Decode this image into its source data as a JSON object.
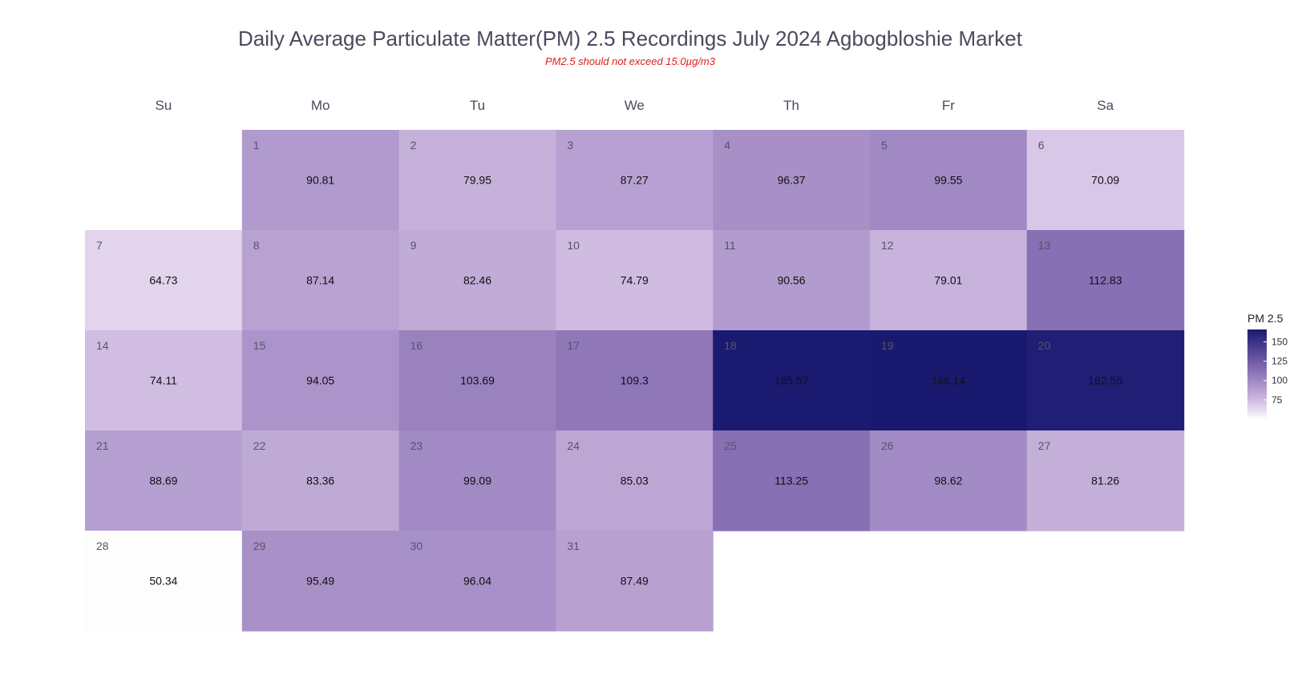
{
  "chart_data": {
    "type": "heatmap",
    "title": "Daily Average Particulate Matter(PM) 2.5 Recordings July 2024 Agbogbloshie Market",
    "subtitle": "PM2.5 should not exceed 15.0µg/m3",
    "weekdays": [
      "Su",
      "Mo",
      "Tu",
      "We",
      "Th",
      "Fr",
      "Sa"
    ],
    "first_weekday_index": 1,
    "days": [
      {
        "day": "1",
        "value": "90.81"
      },
      {
        "day": "2",
        "value": "79.95"
      },
      {
        "day": "3",
        "value": "87.27"
      },
      {
        "day": "4",
        "value": "96.37"
      },
      {
        "day": "5",
        "value": "99.55"
      },
      {
        "day": "6",
        "value": "70.09"
      },
      {
        "day": "7",
        "value": "64.73"
      },
      {
        "day": "8",
        "value": "87.14"
      },
      {
        "day": "9",
        "value": "82.46"
      },
      {
        "day": "10",
        "value": "74.79"
      },
      {
        "day": "11",
        "value": "90.56"
      },
      {
        "day": "12",
        "value": "79.01"
      },
      {
        "day": "13",
        "value": "112.83"
      },
      {
        "day": "14",
        "value": "74.11"
      },
      {
        "day": "15",
        "value": "94.05"
      },
      {
        "day": "16",
        "value": "103.69"
      },
      {
        "day": "17",
        "value": "109.3"
      },
      {
        "day": "18",
        "value": "165.57"
      },
      {
        "day": "19",
        "value": "166.14"
      },
      {
        "day": "20",
        "value": "162.55"
      },
      {
        "day": "21",
        "value": "88.69"
      },
      {
        "day": "22",
        "value": "83.36"
      },
      {
        "day": "23",
        "value": "99.09"
      },
      {
        "day": "24",
        "value": "85.03"
      },
      {
        "day": "25",
        "value": "113.25"
      },
      {
        "day": "26",
        "value": "98.62"
      },
      {
        "day": "27",
        "value": "81.26"
      },
      {
        "day": "28",
        "value": "50.34"
      },
      {
        "day": "29",
        "value": "95.49"
      },
      {
        "day": "30",
        "value": "96.04"
      },
      {
        "day": "31",
        "value": "87.49"
      }
    ],
    "color_scale": {
      "min": 50,
      "max": 166,
      "low_color": "#ffffff",
      "high_color": "#191970"
    },
    "legend": {
      "title": "PM 2.5",
      "ticks": [
        "75",
        "100",
        "125",
        "150"
      ],
      "placement": "right"
    }
  }
}
